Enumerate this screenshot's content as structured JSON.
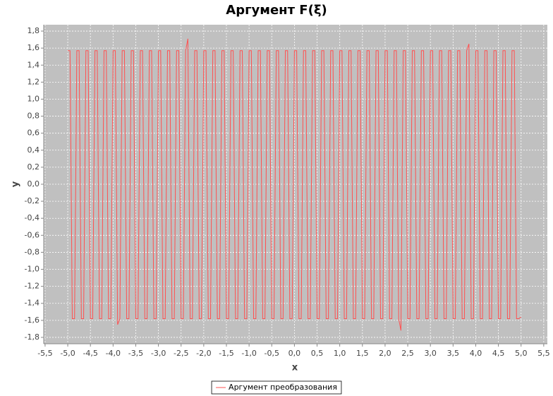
{
  "chart_data": {
    "type": "line",
    "title": "Аргумент F(ξ)",
    "x_label": "x",
    "y_label": "y",
    "xlim": [
      -5.53,
      5.58
    ],
    "ylim": [
      -1.875,
      1.875
    ],
    "grid": true,
    "legend": "bottom",
    "xticks": [
      {
        "value": -5.5,
        "label": "-5,5"
      },
      {
        "value": -5,
        "label": "-5,0"
      },
      {
        "value": -4.5,
        "label": "-4,5"
      },
      {
        "value": -4,
        "label": "-4,0"
      },
      {
        "value": -3.5,
        "label": "-3,5"
      },
      {
        "value": -3,
        "label": "-3,0"
      },
      {
        "value": -2.5,
        "label": "-2,5"
      },
      {
        "value": -2,
        "label": "-2,0"
      },
      {
        "value": -1.5,
        "label": "-1,5"
      },
      {
        "value": -1,
        "label": "-1,0"
      },
      {
        "value": -0.5,
        "label": "-0,5"
      },
      {
        "value": 0,
        "label": "0,0"
      },
      {
        "value": 0.5,
        "label": "0,5"
      },
      {
        "value": 1,
        "label": "1,0"
      },
      {
        "value": 1.5,
        "label": "1,5"
      },
      {
        "value": 2,
        "label": "2,0"
      },
      {
        "value": 2.5,
        "label": "2,5"
      },
      {
        "value": 3,
        "label": "3,0"
      },
      {
        "value": 3.5,
        "label": "3,5"
      },
      {
        "value": 4,
        "label": "4,0"
      },
      {
        "value": 4.5,
        "label": "4,5"
      },
      {
        "value": 5,
        "label": "5,0"
      },
      {
        "value": 5.5,
        "label": "5,5"
      }
    ],
    "yticks": [
      {
        "value": -1.8,
        "label": "-1,8"
      },
      {
        "value": -1.6,
        "label": "-1,6"
      },
      {
        "value": -1.4,
        "label": "-1,4"
      },
      {
        "value": -1.2,
        "label": "-1,2"
      },
      {
        "value": -1,
        "label": "-1,0"
      },
      {
        "value": -0.8,
        "label": "-0,8"
      },
      {
        "value": -0.6,
        "label": "-0,6"
      },
      {
        "value": -0.4,
        "label": "-0,4"
      },
      {
        "value": -0.2,
        "label": "-0,2"
      },
      {
        "value": 0,
        "label": "0,0"
      },
      {
        "value": 0.2,
        "label": "0,2"
      },
      {
        "value": 0.4,
        "label": "0,4"
      },
      {
        "value": 0.6,
        "label": "0,6"
      },
      {
        "value": 0.8,
        "label": "0,8"
      },
      {
        "value": 1,
        "label": "1,0"
      },
      {
        "value": 1.2,
        "label": "1,2"
      },
      {
        "value": 1.4,
        "label": "1,4"
      },
      {
        "value": 1.6,
        "label": "1,6"
      },
      {
        "value": 1.8,
        "label": "1,8"
      }
    ],
    "x": [
      -5,
      -4.95,
      -4.9,
      -4.85,
      -4.8,
      -4.75,
      -4.7,
      -4.65,
      -4.6,
      -4.55,
      -4.5,
      -4.45,
      -4.4,
      -4.35,
      -4.3,
      -4.25,
      -4.2,
      -4.15,
      -4.1,
      -4.05,
      -4,
      -3.95,
      -3.9,
      -3.85,
      -3.8,
      -3.75,
      -3.7,
      -3.65,
      -3.6,
      -3.55,
      -3.5,
      -3.45,
      -3.4,
      -3.35,
      -3.3,
      -3.25,
      -3.2,
      -3.15,
      -3.1,
      -3.05,
      -3,
      -2.95,
      -2.9,
      -2.85,
      -2.8,
      -2.75,
      -2.7,
      -2.65,
      -2.6,
      -2.55,
      -2.5,
      -2.45,
      -2.4,
      -2.35,
      -2.3,
      -2.25,
      -2.2,
      -2.15,
      -2.1,
      -2.05,
      -2,
      -1.95,
      -1.9,
      -1.85,
      -1.8,
      -1.75,
      -1.7,
      -1.65,
      -1.6,
      -1.55,
      -1.5,
      -1.45,
      -1.4,
      -1.35,
      -1.3,
      -1.25,
      -1.2,
      -1.15,
      -1.1,
      -1.05,
      -1,
      -0.95,
      -0.9,
      -0.85,
      -0.8,
      -0.75,
      -0.7,
      -0.65,
      -0.6,
      -0.55,
      -0.5,
      -0.45,
      -0.4,
      -0.35,
      -0.3,
      -0.25,
      -0.2,
      -0.15,
      -0.1,
      -0.05,
      0,
      0.05,
      0.1,
      0.15,
      0.2,
      0.25,
      0.3,
      0.35,
      0.4,
      0.45,
      0.5,
      0.55,
      0.6,
      0.65,
      0.7,
      0.75,
      0.8,
      0.85,
      0.9,
      0.95,
      1,
      1.05,
      1.1,
      1.15,
      1.2,
      1.25,
      1.3,
      1.35,
      1.4,
      1.45,
      1.5,
      1.55,
      1.6,
      1.65,
      1.7,
      1.75,
      1.8,
      1.85,
      1.9,
      1.95,
      2,
      2.05,
      2.1,
      2.15,
      2.2,
      2.25,
      2.3,
      2.35,
      2.4,
      2.45,
      2.5,
      2.55,
      2.6,
      2.65,
      2.7,
      2.75,
      2.8,
      2.85,
      2.9,
      2.95,
      3,
      3.05,
      3.1,
      3.15,
      3.2,
      3.25,
      3.3,
      3.35,
      3.4,
      3.45,
      3.5,
      3.55,
      3.6,
      3.65,
      3.7,
      3.75,
      3.8,
      3.85,
      3.9,
      3.95,
      4,
      4.05,
      4.1,
      4.15,
      4.2,
      4.25,
      4.3,
      4.35,
      4.4,
      4.45,
      4.5,
      4.55,
      4.6,
      4.65,
      4.7,
      4.75,
      4.8,
      4.85,
      4.9,
      4.95,
      5
    ],
    "series": [
      {
        "name": "Аргумент преобразования",
        "color": "#ff5050",
        "values": [
          1.57,
          1.57,
          -1.58,
          -1.58,
          1.57,
          1.57,
          -1.58,
          -1.58,
          1.57,
          1.57,
          -1.58,
          -1.58,
          1.57,
          1.57,
          -1.58,
          -1.58,
          1.57,
          1.57,
          -1.58,
          -1.58,
          1.57,
          1.57,
          -1.65,
          -1.58,
          1.57,
          1.57,
          -1.58,
          -1.58,
          1.57,
          1.57,
          -1.58,
          -1.58,
          1.57,
          1.57,
          -1.58,
          -1.58,
          1.57,
          1.57,
          -1.58,
          -1.58,
          1.57,
          1.57,
          -1.58,
          -1.58,
          1.57,
          1.57,
          -1.58,
          -1.58,
          1.57,
          1.57,
          -1.58,
          -1.58,
          1.57,
          1.71,
          -1.58,
          -1.58,
          1.57,
          1.57,
          -1.58,
          -1.58,
          1.57,
          1.57,
          -1.58,
          -1.58,
          1.57,
          1.57,
          -1.58,
          -1.58,
          1.57,
          1.57,
          -1.58,
          -1.58,
          1.57,
          1.57,
          -1.58,
          -1.58,
          1.57,
          1.57,
          -1.58,
          -1.58,
          1.57,
          1.57,
          -1.58,
          -1.58,
          1.57,
          1.57,
          -1.58,
          -1.58,
          1.57,
          1.57,
          -1.58,
          -1.58,
          1.57,
          1.57,
          -1.58,
          -1.58,
          1.57,
          1.57,
          -1.58,
          -1.58,
          1.57,
          1.57,
          -1.58,
          -1.58,
          1.57,
          1.57,
          -1.58,
          -1.58,
          1.57,
          1.57,
          -1.58,
          -1.58,
          1.57,
          1.57,
          -1.58,
          -1.58,
          1.57,
          1.57,
          -1.58,
          -1.58,
          1.57,
          1.57,
          -1.58,
          -1.58,
          1.57,
          1.57,
          -1.58,
          -1.58,
          1.57,
          1.57,
          -1.58,
          -1.58,
          1.57,
          1.57,
          -1.58,
          -1.58,
          1.57,
          1.57,
          -1.58,
          -1.58,
          1.57,
          1.57,
          -1.58,
          -1.58,
          1.57,
          1.57,
          -1.58,
          -1.72,
          1.57,
          1.57,
          -1.58,
          -1.58,
          1.57,
          1.57,
          -1.58,
          -1.58,
          1.57,
          1.57,
          -1.58,
          -1.58,
          1.57,
          1.57,
          -1.58,
          -1.58,
          1.57,
          1.57,
          -1.58,
          -1.58,
          1.57,
          1.57,
          -1.58,
          -1.58,
          1.57,
          1.57,
          -1.58,
          -1.58,
          1.57,
          1.65,
          -1.58,
          -1.58,
          1.57,
          1.57,
          -1.58,
          -1.58,
          1.57,
          1.57,
          -1.58,
          -1.58,
          1.57,
          1.57,
          -1.58,
          -1.58,
          1.57,
          1.57,
          -1.58,
          -1.58,
          1.57,
          1.57,
          -1.58,
          -1.58,
          -1.56
        ]
      }
    ]
  }
}
